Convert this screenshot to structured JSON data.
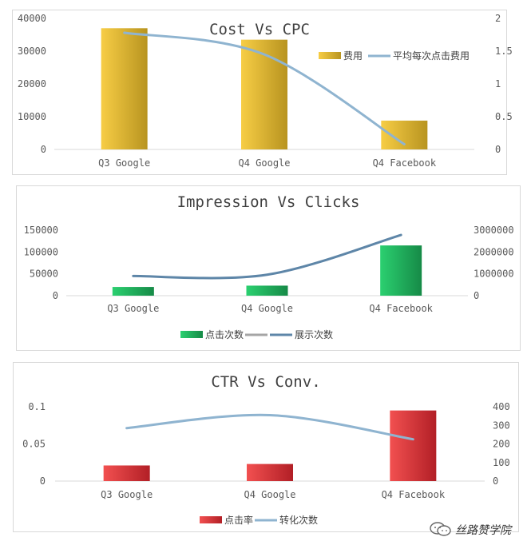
{
  "chart_data": [
    {
      "type": "bar",
      "title": "Cost Vs CPC",
      "categories": [
        "Q3 Google",
        "Q4 Google",
        "Q4 Facebook"
      ],
      "series": [
        {
          "name": "费用",
          "kind": "bar",
          "axis": "left",
          "values": [
            37000,
            33500,
            8800
          ],
          "color": "#f2c233"
        },
        {
          "name": "平均每次点击费用",
          "kind": "line",
          "axis": "right",
          "values": [
            1.78,
            1.45,
            0.08
          ],
          "color": "#8fb4d0"
        }
      ],
      "ylim": [
        0,
        40000
      ],
      "yticks": [
        0,
        10000,
        20000,
        30000,
        40000
      ],
      "y2lim": [
        0,
        2
      ],
      "y2ticks": [
        "0",
        "0.5",
        "1",
        "1.5",
        "2"
      ],
      "legend": "top-right"
    },
    {
      "type": "bar",
      "title": "Impression Vs Clicks",
      "categories": [
        "Q3 Google",
        "Q4 Google",
        "Q4 Facebook"
      ],
      "series": [
        {
          "name": "点击次数",
          "kind": "bar",
          "axis": "left",
          "values": [
            20000,
            23000,
            115000
          ],
          "color": "#22c065"
        },
        {
          "name": "",
          "kind": "legend-only",
          "color": "#a5a5a5"
        },
        {
          "name": "展示次数",
          "kind": "line",
          "axis": "right",
          "values": [
            900000,
            960000,
            2780000
          ],
          "color": "#5e86a8"
        }
      ],
      "ylim": [
        0,
        150000
      ],
      "yticks": [
        0,
        50000,
        100000,
        150000
      ],
      "y2lim": [
        0,
        3000000
      ],
      "y2ticks": [
        "0",
        "1000000",
        "2000000",
        "3000000"
      ],
      "legend": "bottom"
    },
    {
      "type": "bar",
      "title": "CTR Vs Conv.",
      "categories": [
        "Q3 Google",
        "Q4 Google",
        "Q4 Facebook"
      ],
      "series": [
        {
          "name": "点击率",
          "kind": "bar",
          "axis": "left",
          "values": [
            0.021,
            0.023,
            0.095
          ],
          "color": "#e83b3b"
        },
        {
          "name": "转化次数",
          "kind": "line",
          "axis": "right",
          "values": [
            285,
            355,
            225
          ],
          "color": "#8fb4d0"
        }
      ],
      "ylim": [
        0,
        0.1
      ],
      "yticks": [
        "0",
        "0.05",
        "0.1"
      ],
      "y2lim": [
        0,
        400
      ],
      "y2ticks": [
        "0",
        "100",
        "200",
        "300",
        "400"
      ],
      "legend": "bottom"
    }
  ],
  "watermark": {
    "text": "丝路赞学院",
    "icon": "wechat-icon"
  }
}
